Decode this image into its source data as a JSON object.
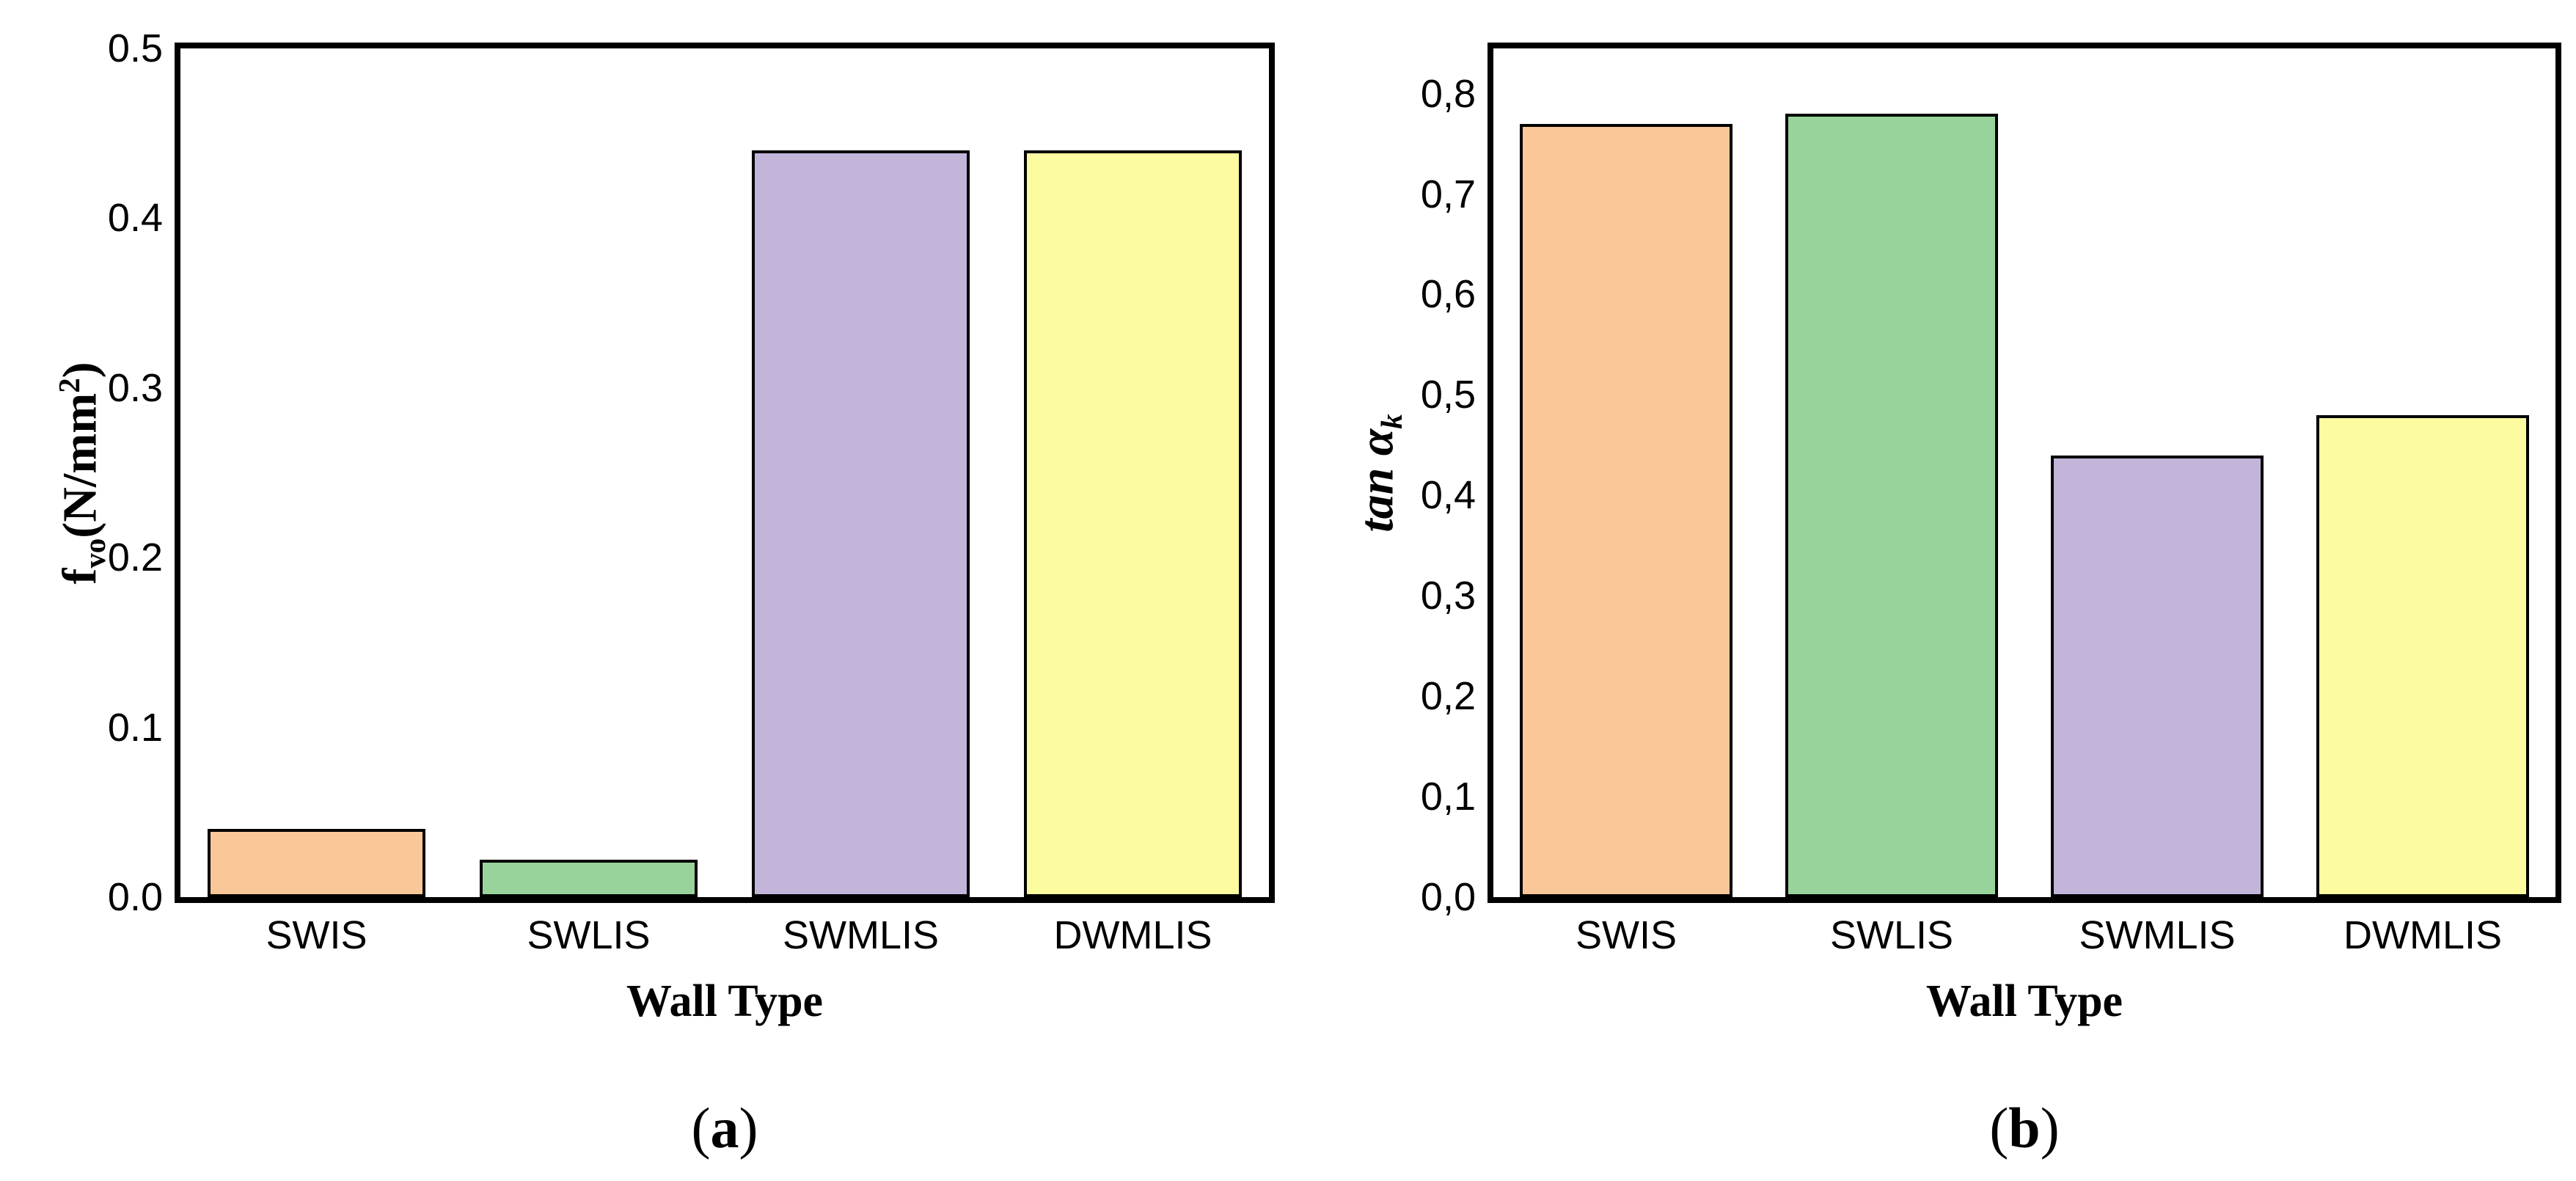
{
  "page": {
    "background": "#FFFFFF"
  },
  "chart_data": [
    {
      "type": "bar",
      "panel": "a",
      "caption": {
        "open": "(",
        "letter": "a",
        "close": ")"
      },
      "xlabel": "Wall Type",
      "ylabel": "fvo(N/mm2)",
      "ylabel_parts": {
        "base": "f",
        "sub": "vo",
        "unit_open": "(N/mm",
        "sup": "2",
        "unit_close": ")"
      },
      "categories": [
        "SWIS",
        "SWLIS",
        "SWMLIS",
        "DWMLIS"
      ],
      "values": [
        0.04,
        0.022,
        0.44,
        0.44
      ],
      "bar_colors": [
        "#FAC898",
        "#99D39C",
        "#C3B5DA",
        "#FDFBA0"
      ],
      "bar_border_color": "#000000",
      "ylim": [
        0,
        0.5
      ],
      "y_ticks": {
        "values": [
          0.0,
          0.1,
          0.2,
          0.3,
          0.4,
          0.5
        ],
        "labels": [
          "0.0",
          "0.1",
          "0.2",
          "0.3",
          "0.4",
          "0.5"
        ]
      },
      "decimal_separator": ".",
      "grid": false,
      "legend": null
    },
    {
      "type": "bar",
      "panel": "b",
      "caption": {
        "open": "(",
        "letter": "b",
        "close": ")"
      },
      "xlabel": "Wall Type",
      "ylabel": "tan ak",
      "ylabel_parts": {
        "base": "tan α",
        "sub": "k",
        "unit_open": "",
        "sup": "",
        "unit_close": ""
      },
      "categories": [
        "SWIS",
        "SWLIS",
        "SWMLIS",
        "DWMLIS"
      ],
      "values": [
        0.77,
        0.78,
        0.44,
        0.48
      ],
      "bar_colors": [
        "#FAC898",
        "#99D39C",
        "#C3B5DA",
        "#FDFBA0"
      ],
      "bar_border_color": "#000000",
      "ylim": [
        0,
        0.845
      ],
      "y_ticks": {
        "values": [
          0.0,
          0.1,
          0.2,
          0.3,
          0.4,
          0.5,
          0.6,
          0.7,
          0.8
        ],
        "labels": [
          "0,0",
          "0,1",
          "0,2",
          "0,3",
          "0,4",
          "0,5",
          "0,6",
          "0,7",
          "0,8"
        ]
      },
      "decimal_separator": ",",
      "grid": false,
      "legend": null
    }
  ]
}
